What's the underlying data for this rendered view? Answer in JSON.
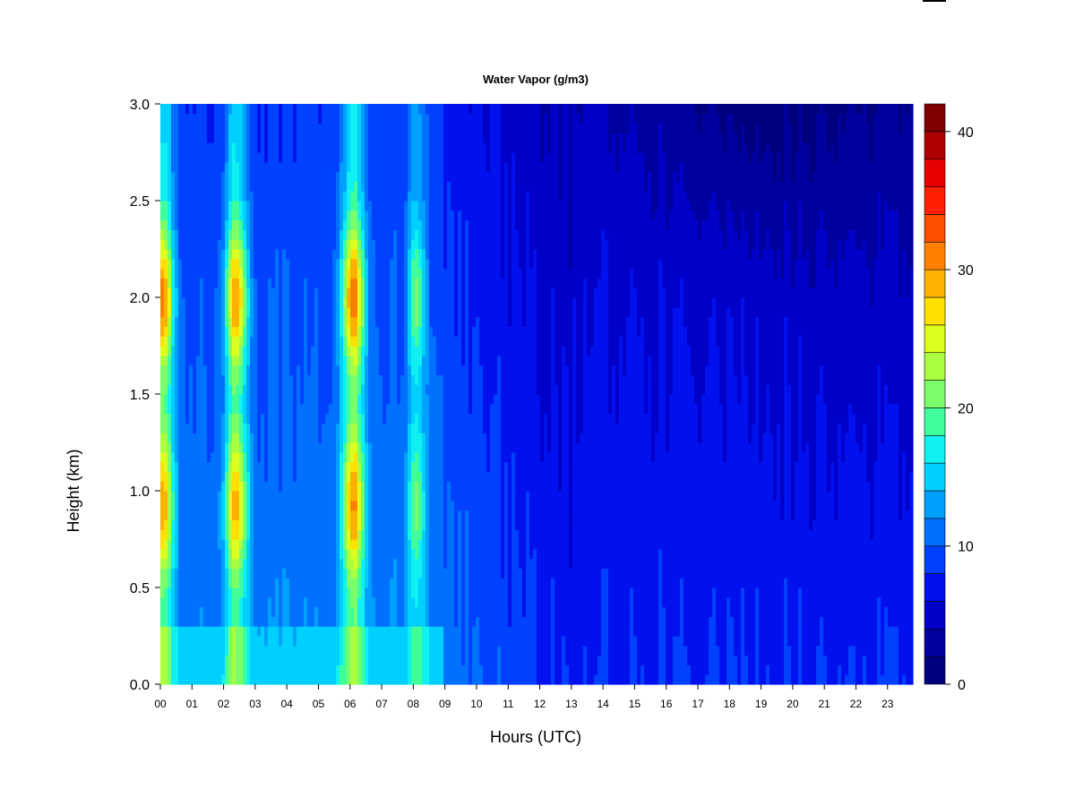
{
  "chart_data": {
    "type": "heatmap",
    "title": "Water Vapor (g/m3)",
    "xlabel": "Hours (UTC)",
    "ylabel": "Height (km)",
    "xlim": [
      0,
      23.8
    ],
    "ylim": [
      0,
      3.0
    ],
    "x_ticks": [
      "00",
      "01",
      "02",
      "03",
      "04",
      "05",
      "06",
      "07",
      "08",
      "09",
      "10",
      "11",
      "12",
      "13",
      "14",
      "15",
      "16",
      "17",
      "18",
      "19",
      "20",
      "21",
      "22",
      "23"
    ],
    "y_ticks": [
      "0.0",
      "0.5",
      "1.0",
      "1.5",
      "2.0",
      "2.5",
      "3.0"
    ],
    "colorbar": {
      "range": [
        0,
        42
      ],
      "step": 2,
      "ticks": [
        "0",
        "10",
        "20",
        "30",
        "40"
      ],
      "colors": [
        "#00007f",
        "#00009f",
        "#0000c8",
        "#0011ee",
        "#0040ff",
        "#0070ff",
        "#00a0ff",
        "#00d0ff",
        "#10f0f0",
        "#40ff9a",
        "#7aff6a",
        "#aaff40",
        "#dcff20",
        "#ffe000",
        "#ffb000",
        "#ff8000",
        "#ff5000",
        "#ff2000",
        "#e80000",
        "#b00000",
        "#800000"
      ]
    },
    "moisture_events": [
      {
        "hour": 0.05,
        "strength": 1.0
      },
      {
        "hour": 2.4,
        "strength": 0.95
      },
      {
        "hour": 6.1,
        "strength": 1.0
      },
      {
        "hour": 8.1,
        "strength": 0.5
      }
    ]
  }
}
